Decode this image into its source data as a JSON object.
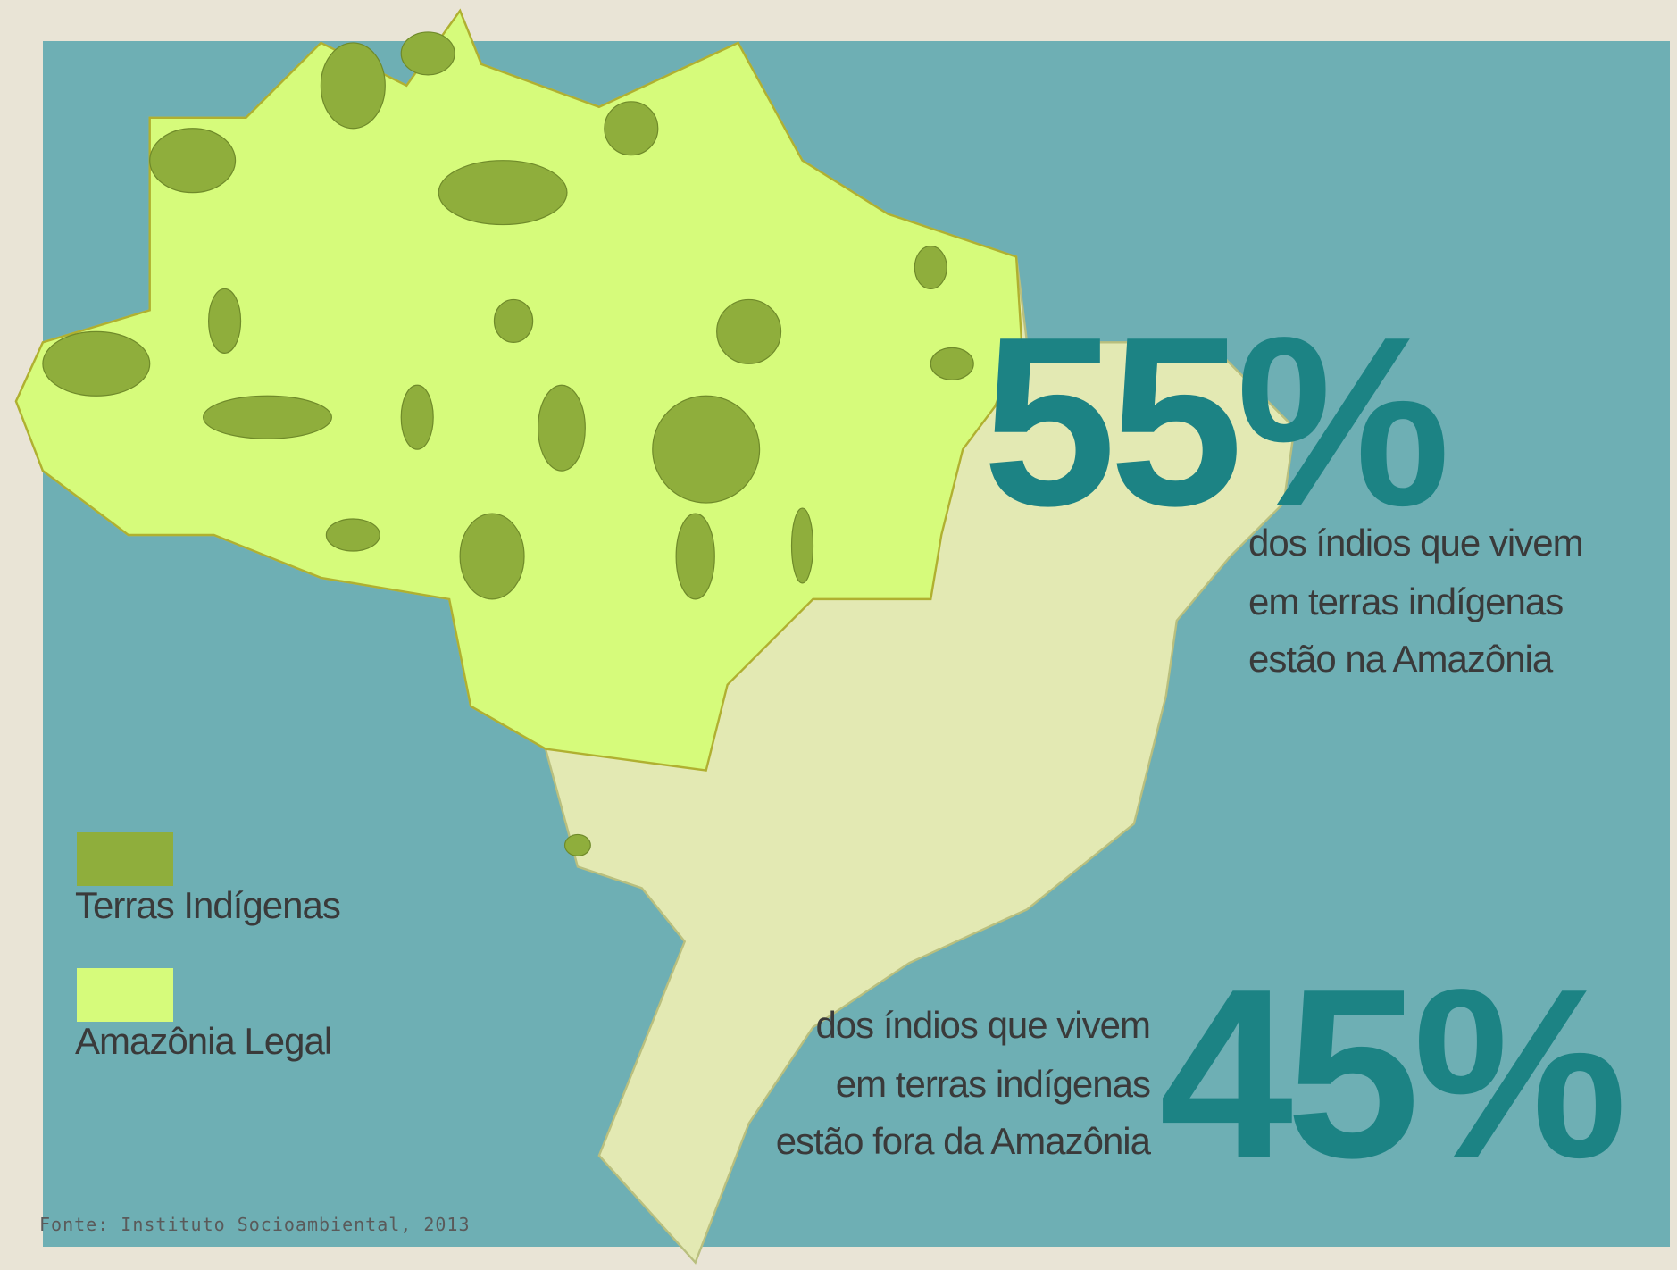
{
  "legend": [
    {
      "label": "Terras Indígenas",
      "color": "#8fae3c"
    },
    {
      "label": "Amazônia Legal",
      "color": "#d6fb7b"
    }
  ],
  "stats": [
    {
      "figure": "55%",
      "caption": [
        "dos índios que vivem",
        "em terras indígenas",
        "estão na Amazônia"
      ]
    },
    {
      "figure": "45%",
      "caption": [
        "dos índios que vivem",
        "em terras indígenas",
        "estão fora da Amazônia"
      ]
    }
  ],
  "source": "Fonte: Instituto Socioambiental, 2013"
}
